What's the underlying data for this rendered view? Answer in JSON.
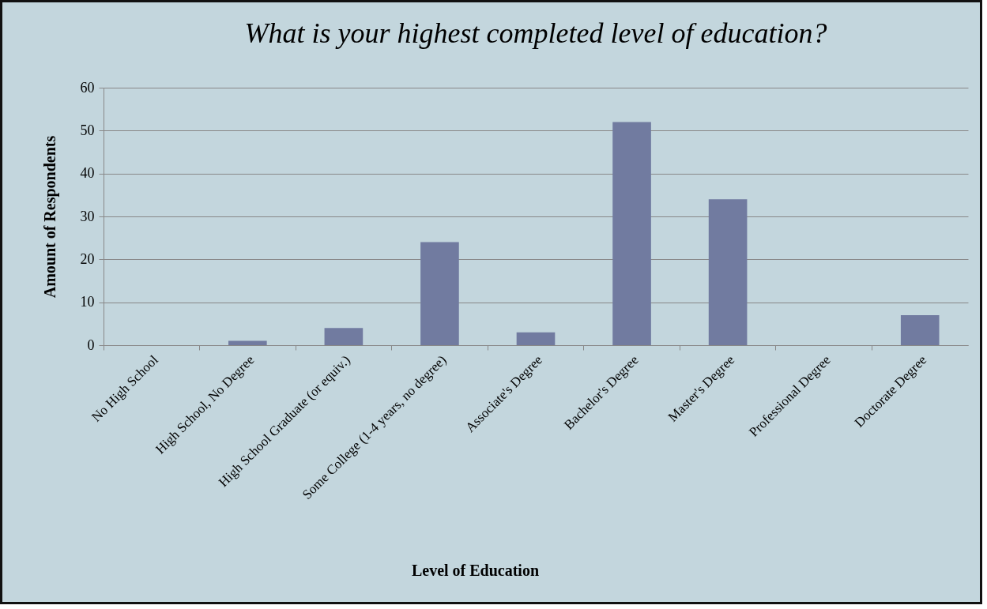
{
  "chart_data": {
    "type": "bar",
    "title": "What is your highest completed level of education?",
    "xlabel": "Level of Education",
    "ylabel": "Amount of Respondents",
    "categories": [
      "No High School",
      "High School, No Degree",
      "High School Graduate (or equiv.)",
      "Some College (1-4 years, no degree)",
      "Associate's Degree",
      "Bachelor's Degree",
      "Master's Degree",
      "Professional Degree",
      "Doctorate Degree"
    ],
    "values": [
      0,
      1,
      4,
      24,
      3,
      52,
      34,
      0,
      7
    ],
    "color": "#717ba0",
    "ylim": [
      0,
      60
    ],
    "yticks": [
      0,
      10,
      20,
      30,
      40,
      50,
      60
    ],
    "grid": "y"
  }
}
